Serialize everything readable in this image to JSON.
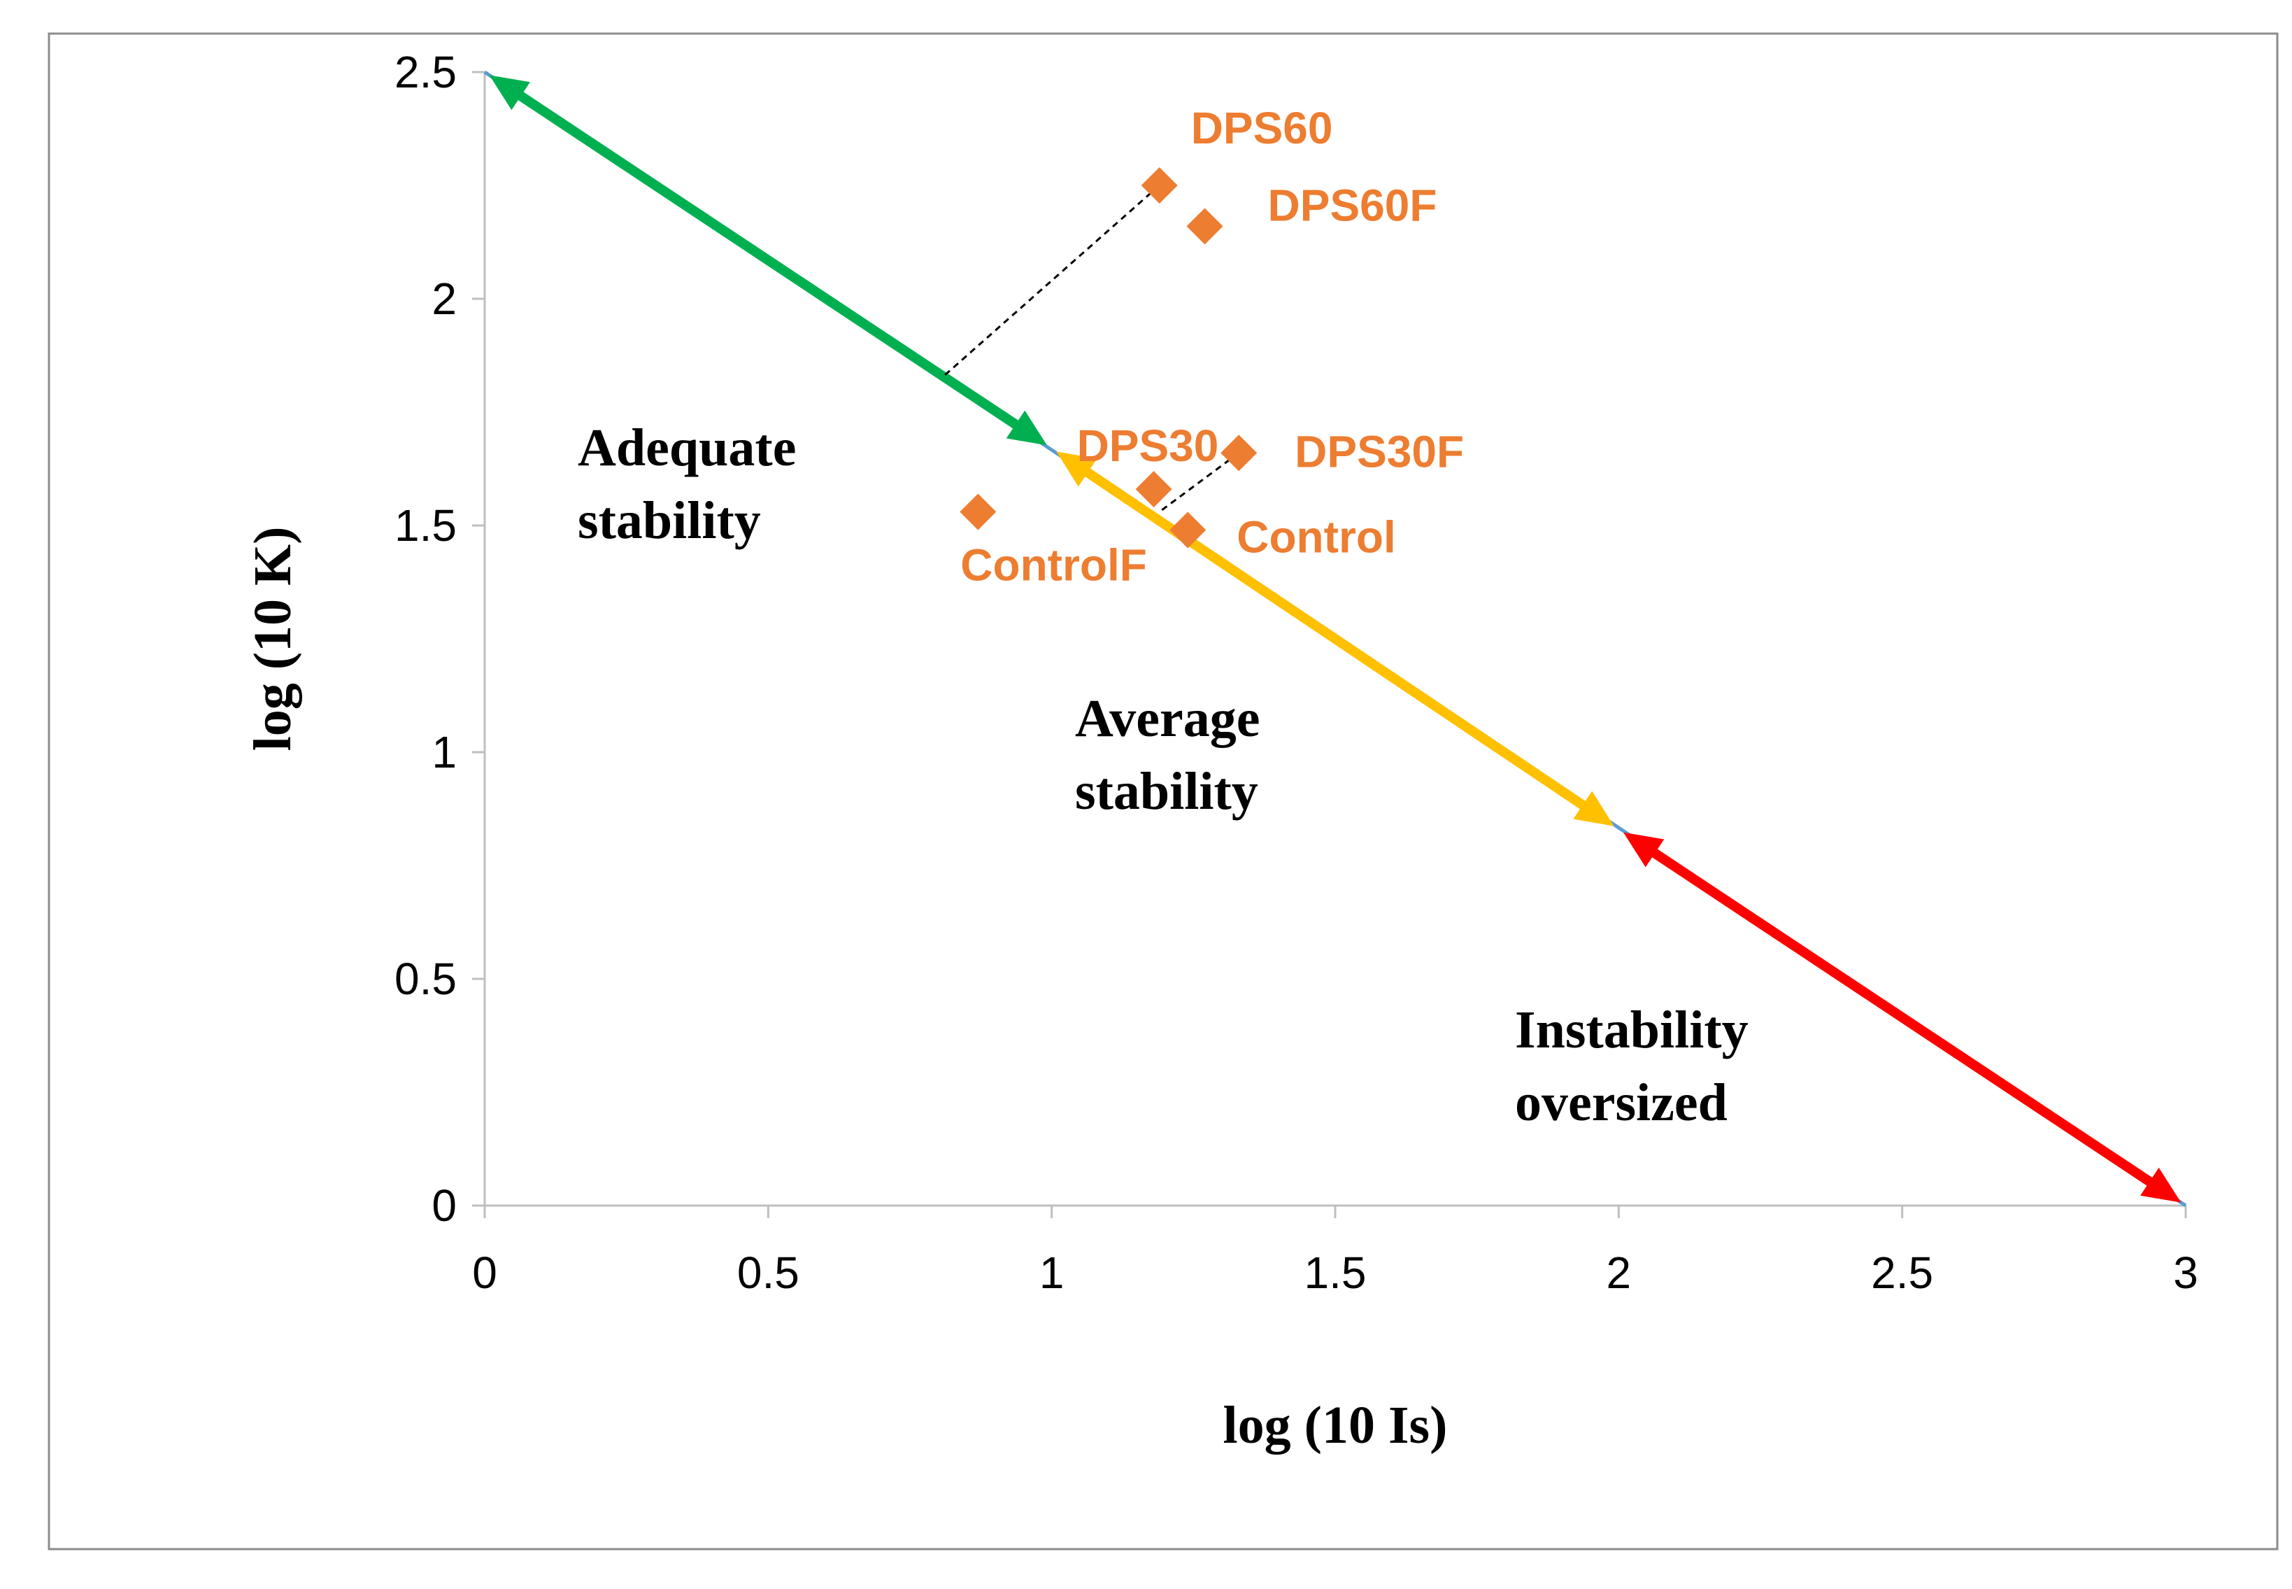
{
  "chart_data": {
    "type": "scatter",
    "xlabel": "log (10 Is)",
    "ylabel": "log (10 K)",
    "xlim": [
      0,
      3
    ],
    "ylim": [
      0,
      2.5
    ],
    "x_ticks": [
      "0",
      "0.5",
      "1",
      "1.5",
      "2",
      "2.5",
      "3"
    ],
    "y_ticks": [
      "0",
      "0.5",
      "1",
      "1.5",
      "2",
      "2.5"
    ],
    "grid": false,
    "colors": {
      "points": "#ED7D31",
      "adequate": "#00B050",
      "average": "#FFC000",
      "instability": "#FF0000",
      "baseline": "#5B9BD5"
    },
    "points": [
      {
        "name": "DPS60",
        "x": 1.19,
        "y": 2.25
      },
      {
        "name": "DPS60F",
        "x": 1.27,
        "y": 2.16
      },
      {
        "name": "DPS30",
        "x": 1.18,
        "y": 1.58
      },
      {
        "name": "DPS30F",
        "x": 1.33,
        "y": 1.66
      },
      {
        "name": "Control",
        "x": 1.24,
        "y": 1.49
      },
      {
        "name": "ControlF",
        "x": 0.87,
        "y": 1.53
      }
    ],
    "regions": [
      {
        "label_lines": [
          "Adequate",
          "stability"
        ],
        "from": [
          0.0,
          2.5
        ],
        "to": [
          1.0,
          1.67
        ]
      },
      {
        "label_lines": [
          "Average",
          "stability"
        ],
        "from": [
          1.0,
          1.67
        ],
        "to": [
          2.0,
          0.83
        ]
      },
      {
        "label_lines": [
          "Instability",
          "oversized"
        ],
        "from": [
          2.0,
          0.83
        ],
        "to": [
          3.0,
          0.0
        ]
      }
    ],
    "dashed_guides": [
      {
        "from": [
          1.19,
          2.25
        ],
        "to": [
          0.81,
          1.83
        ]
      },
      {
        "from": [
          1.33,
          1.66
        ],
        "to": [
          1.19,
          1.53
        ]
      }
    ]
  }
}
